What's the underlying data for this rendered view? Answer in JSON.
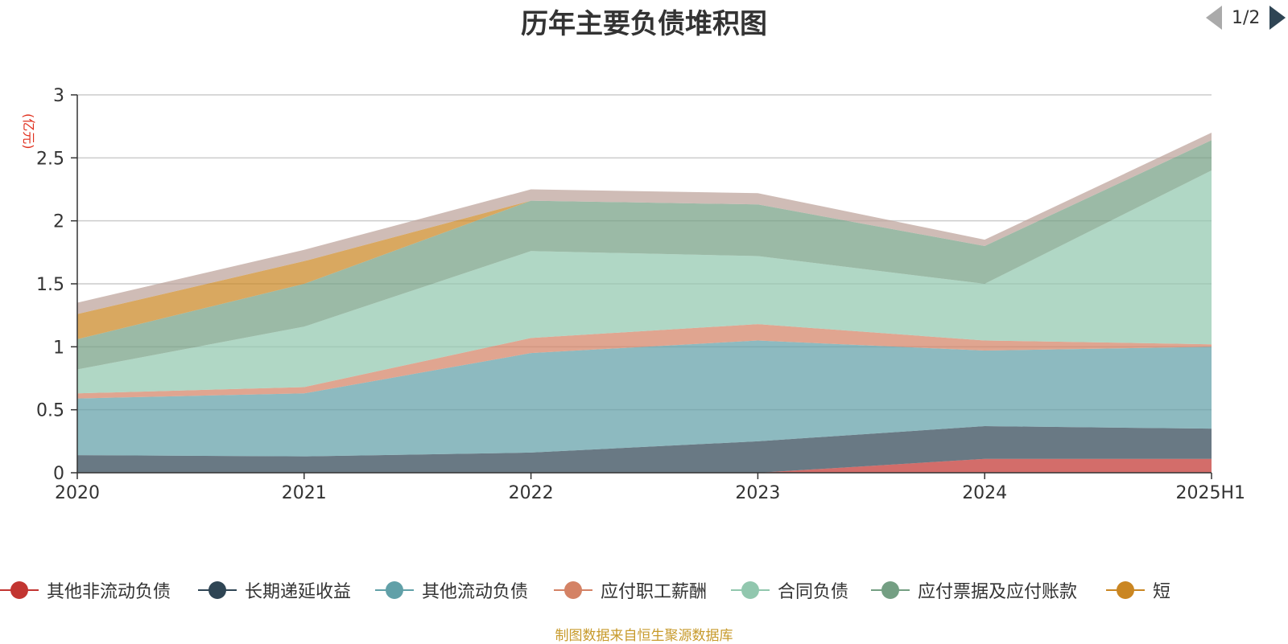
{
  "chart_data": {
    "type": "area",
    "stacked": true,
    "title": "历年主要负债堆积图",
    "ylabel": "(亿元)",
    "xlabel": "",
    "categories": [
      "2020",
      "2021",
      "2022",
      "2023",
      "2024",
      "2025H1"
    ],
    "ylim": [
      0,
      3
    ],
    "yticks": [
      "0",
      "0.5",
      "1",
      "1.5",
      "2",
      "2.5",
      "3"
    ],
    "grid": true,
    "legend_position": "bottom",
    "series": [
      {
        "name": "其他非流动负债",
        "color": "#c23531",
        "values": [
          0,
          0,
          0,
          0,
          0.11,
          0.11
        ]
      },
      {
        "name": "长期递延收益",
        "color": "#2f4554",
        "values": [
          0.14,
          0.13,
          0.16,
          0.25,
          0.26,
          0.24
        ]
      },
      {
        "name": "其他流动负债",
        "color": "#61a0a8",
        "values": [
          0.45,
          0.5,
          0.79,
          0.8,
          0.6,
          0.65
        ]
      },
      {
        "name": "应付职工薪酬",
        "color": "#d48265",
        "values": [
          0.04,
          0.05,
          0.12,
          0.13,
          0.08,
          0.02
        ]
      },
      {
        "name": "合同负债",
        "color": "#91c7ae",
        "values": [
          0.19,
          0.48,
          0.69,
          0.54,
          0.45,
          1.38
        ]
      },
      {
        "name": "应付票据及应付账款",
        "color": "#749f83",
        "values": [
          0.24,
          0.34,
          0.4,
          0.41,
          0.3,
          0.24
        ]
      },
      {
        "name": "短期借款",
        "color": "#ca8622",
        "values": [
          0.2,
          0.18,
          0.0,
          0.0,
          0.0,
          0.0
        ]
      },
      {
        "name": "",
        "color": "#bda29a",
        "values": [
          0.09,
          0.09,
          0.09,
          0.09,
          0.05,
          0.06
        ]
      }
    ]
  },
  "legend": {
    "items": [
      {
        "label": "其他非流动负债",
        "color": "#c23531"
      },
      {
        "label": "长期递延收益",
        "color": "#2f4554"
      },
      {
        "label": "其他流动负债",
        "color": "#61a0a8"
      },
      {
        "label": "应付职工薪酬",
        "color": "#d48265"
      },
      {
        "label": "合同负债",
        "color": "#91c7ae"
      },
      {
        "label": "应付票据及应付账款",
        "color": "#749f83"
      },
      {
        "label": "短",
        "color": "#ca8622"
      }
    ],
    "page_indicator": "1/2"
  },
  "source_note": "制图数据来自恒生聚源数据库"
}
